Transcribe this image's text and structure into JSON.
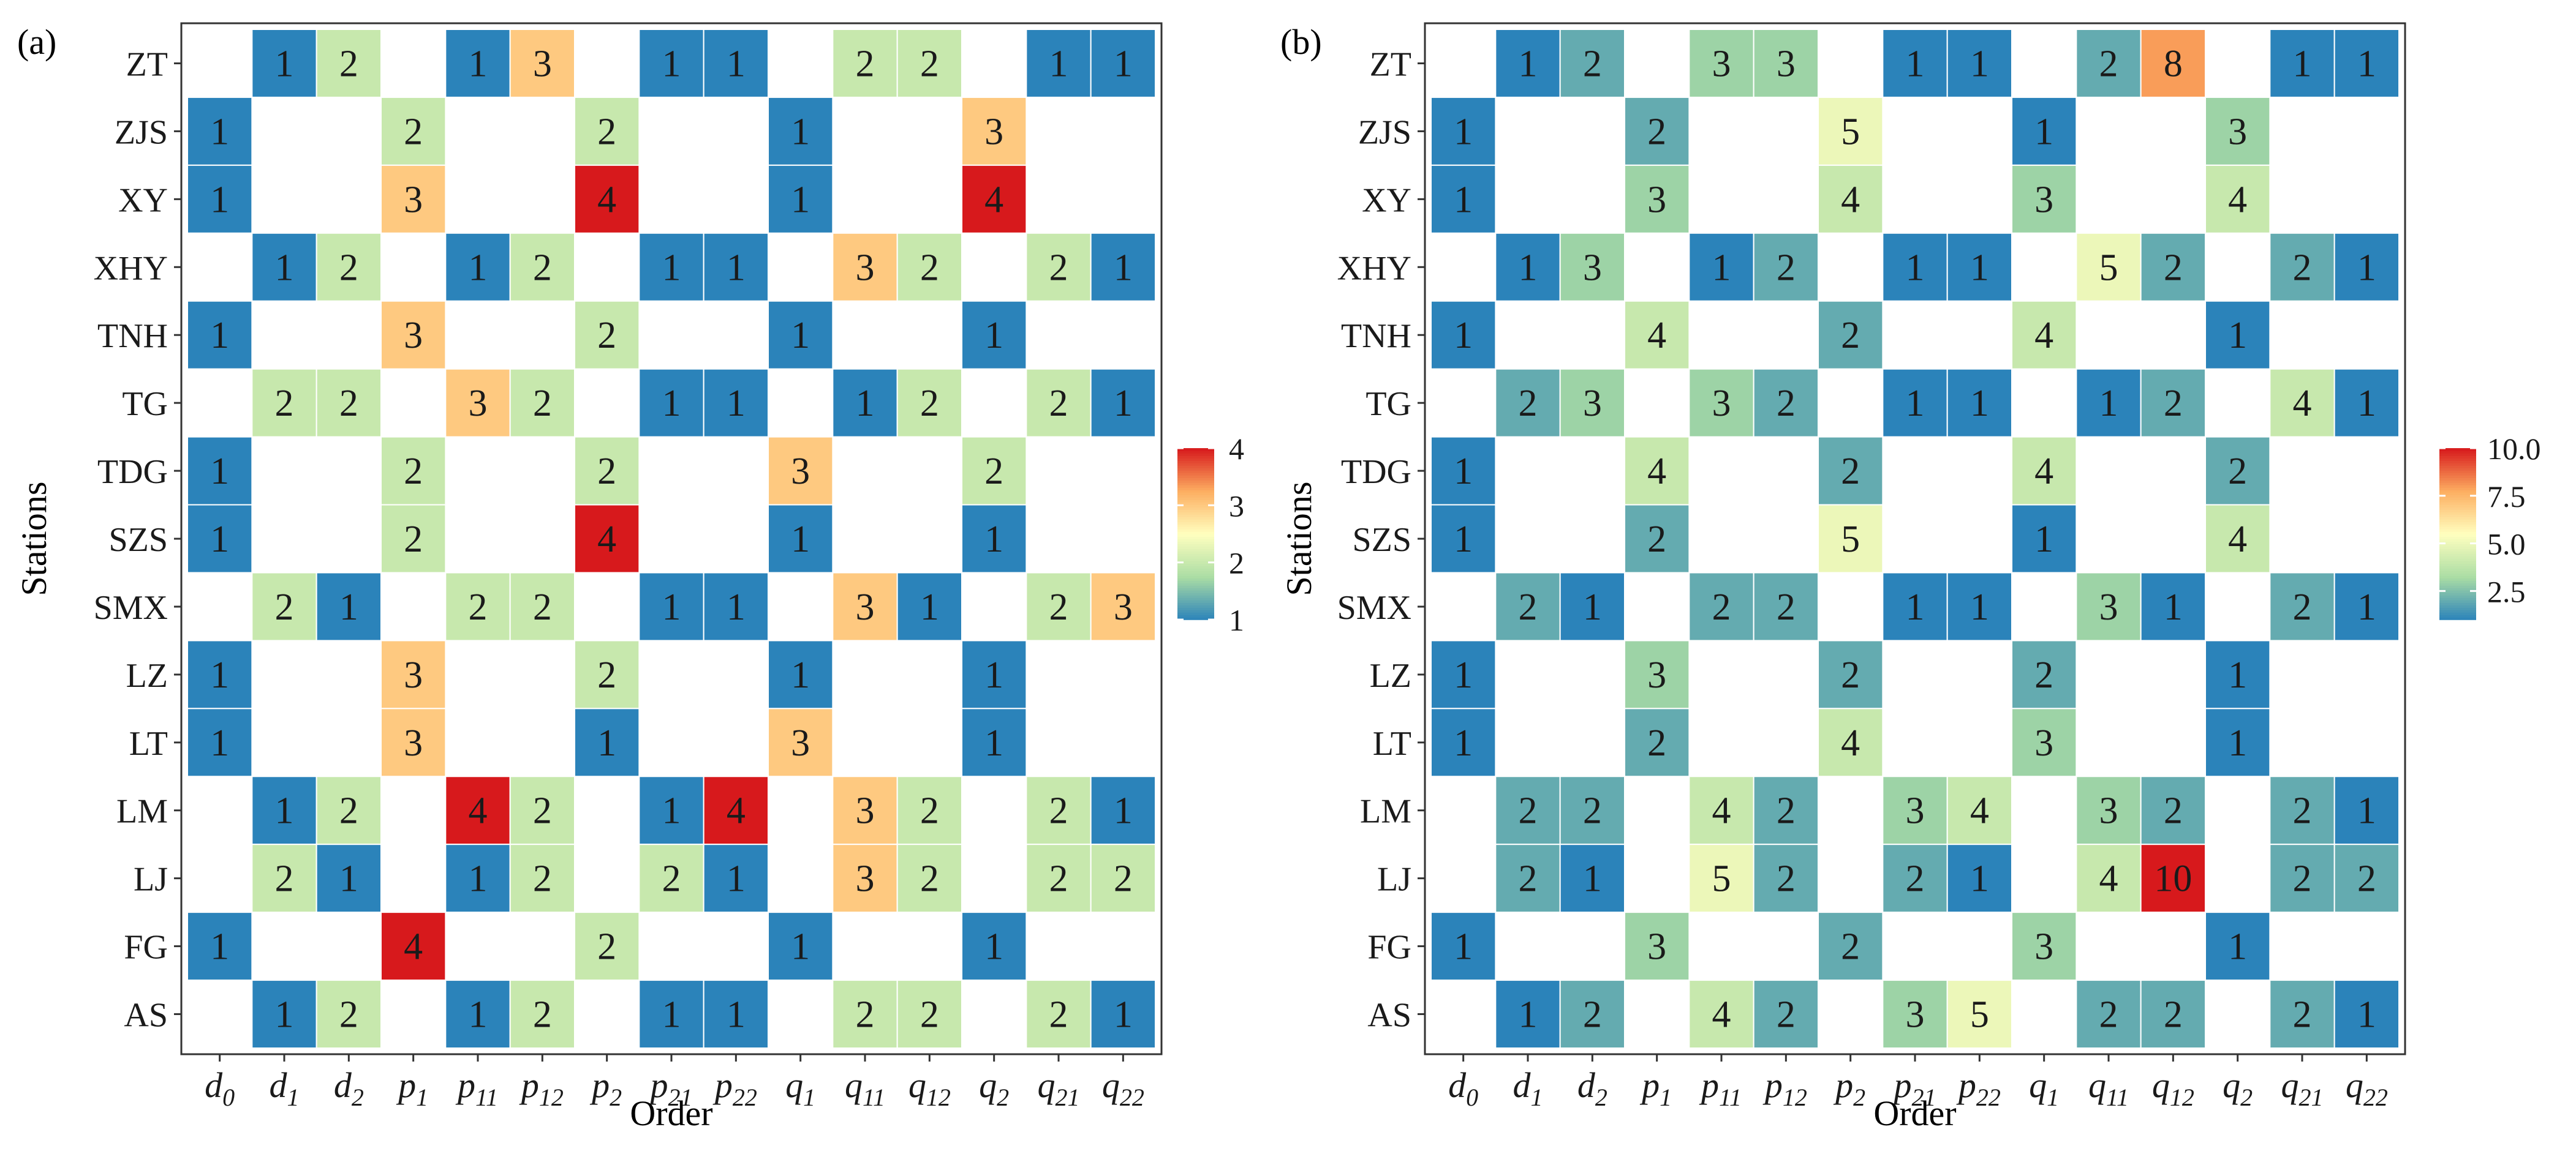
{
  "panels": [
    {
      "label": "(a)",
      "chart_data": {
        "type": "heatmap",
        "xlabel": "Order",
        "ylabel": "Stations",
        "x_categories": [
          {
            "base": "d",
            "sub": "0"
          },
          {
            "base": "d",
            "sub": "1"
          },
          {
            "base": "d",
            "sub": "2"
          },
          {
            "base": "p",
            "sub": "1"
          },
          {
            "base": "p",
            "sub": "11"
          },
          {
            "base": "p",
            "sub": "12"
          },
          {
            "base": "p",
            "sub": "2"
          },
          {
            "base": "p",
            "sub": "21"
          },
          {
            "base": "p",
            "sub": "22"
          },
          {
            "base": "q",
            "sub": "1"
          },
          {
            "base": "q",
            "sub": "11"
          },
          {
            "base": "q",
            "sub": "12"
          },
          {
            "base": "q",
            "sub": "2"
          },
          {
            "base": "q",
            "sub": "21"
          },
          {
            "base": "q",
            "sub": "22"
          }
        ],
        "y_categories": [
          "ZT",
          "ZJS",
          "XY",
          "XHY",
          "TNH",
          "TG",
          "TDG",
          "SZS",
          "SMX",
          "LZ",
          "LT",
          "LM",
          "LJ",
          "FG",
          "AS"
        ],
        "values": [
          [
            null,
            1,
            2,
            null,
            1,
            3,
            null,
            1,
            1,
            null,
            2,
            2,
            null,
            1,
            1
          ],
          [
            1,
            null,
            null,
            2,
            null,
            null,
            2,
            null,
            null,
            1,
            null,
            null,
            3,
            null,
            null
          ],
          [
            1,
            null,
            null,
            3,
            null,
            null,
            4,
            null,
            null,
            1,
            null,
            null,
            4,
            null,
            null
          ],
          [
            null,
            1,
            2,
            null,
            1,
            2,
            null,
            1,
            1,
            null,
            3,
            2,
            null,
            2,
            1
          ],
          [
            1,
            null,
            null,
            3,
            null,
            null,
            2,
            null,
            null,
            1,
            null,
            null,
            1,
            null,
            null
          ],
          [
            null,
            2,
            2,
            null,
            3,
            2,
            null,
            1,
            1,
            null,
            1,
            2,
            null,
            2,
            1
          ],
          [
            1,
            null,
            null,
            2,
            null,
            null,
            2,
            null,
            null,
            3,
            null,
            null,
            2,
            null,
            null
          ],
          [
            1,
            null,
            null,
            2,
            null,
            null,
            4,
            null,
            null,
            1,
            null,
            null,
            1,
            null,
            null
          ],
          [
            null,
            2,
            1,
            null,
            2,
            2,
            null,
            1,
            1,
            null,
            3,
            1,
            null,
            2,
            3
          ],
          [
            1,
            null,
            null,
            3,
            null,
            null,
            2,
            null,
            null,
            1,
            null,
            null,
            1,
            null,
            null
          ],
          [
            1,
            null,
            null,
            3,
            null,
            null,
            1,
            null,
            null,
            3,
            null,
            null,
            1,
            null,
            null
          ],
          [
            null,
            1,
            2,
            null,
            4,
            2,
            null,
            1,
            4,
            null,
            3,
            2,
            null,
            2,
            1
          ],
          [
            null,
            2,
            1,
            null,
            1,
            2,
            null,
            2,
            1,
            null,
            3,
            2,
            null,
            2,
            2
          ],
          [
            1,
            null,
            null,
            4,
            null,
            null,
            2,
            null,
            null,
            1,
            null,
            null,
            1,
            null,
            null
          ],
          [
            null,
            1,
            2,
            null,
            1,
            2,
            null,
            1,
            1,
            null,
            2,
            2,
            null,
            2,
            1
          ]
        ],
        "color_range": [
          1,
          4
        ],
        "colorbar_ticks": [
          "1",
          "2",
          "3",
          "4"
        ],
        "colormap": [
          "#2b83ba",
          "#abdda4",
          "#ffffbf",
          "#fdae61",
          "#d7191c"
        ]
      }
    },
    {
      "label": "(b)",
      "chart_data": {
        "type": "heatmap",
        "xlabel": "Order",
        "ylabel": "Stations",
        "x_categories": [
          {
            "base": "d",
            "sub": "0"
          },
          {
            "base": "d",
            "sub": "1"
          },
          {
            "base": "d",
            "sub": "2"
          },
          {
            "base": "p",
            "sub": "1"
          },
          {
            "base": "p",
            "sub": "11"
          },
          {
            "base": "p",
            "sub": "12"
          },
          {
            "base": "p",
            "sub": "2"
          },
          {
            "base": "p",
            "sub": "21"
          },
          {
            "base": "p",
            "sub": "22"
          },
          {
            "base": "q",
            "sub": "1"
          },
          {
            "base": "q",
            "sub": "11"
          },
          {
            "base": "q",
            "sub": "12"
          },
          {
            "base": "q",
            "sub": "2"
          },
          {
            "base": "q",
            "sub": "21"
          },
          {
            "base": "q",
            "sub": "22"
          }
        ],
        "y_categories": [
          "ZT",
          "ZJS",
          "XY",
          "XHY",
          "TNH",
          "TG",
          "TDG",
          "SZS",
          "SMX",
          "LZ",
          "LT",
          "LM",
          "LJ",
          "FG",
          "AS"
        ],
        "values": [
          [
            null,
            1,
            2,
            null,
            3,
            3,
            null,
            1,
            1,
            null,
            2,
            8,
            null,
            1,
            1
          ],
          [
            1,
            null,
            null,
            2,
            null,
            null,
            5,
            null,
            null,
            1,
            null,
            null,
            3,
            null,
            null
          ],
          [
            1,
            null,
            null,
            3,
            null,
            null,
            4,
            null,
            null,
            3,
            null,
            null,
            4,
            null,
            null
          ],
          [
            null,
            1,
            3,
            null,
            1,
            2,
            null,
            1,
            1,
            null,
            5,
            2,
            null,
            2,
            1
          ],
          [
            1,
            null,
            null,
            4,
            null,
            null,
            2,
            null,
            null,
            4,
            null,
            null,
            1,
            null,
            null
          ],
          [
            null,
            2,
            3,
            null,
            3,
            2,
            null,
            1,
            1,
            null,
            1,
            2,
            null,
            4,
            1
          ],
          [
            1,
            null,
            null,
            4,
            null,
            null,
            2,
            null,
            null,
            4,
            null,
            null,
            2,
            null,
            null
          ],
          [
            1,
            null,
            null,
            2,
            null,
            null,
            5,
            null,
            null,
            1,
            null,
            null,
            4,
            null,
            null
          ],
          [
            null,
            2,
            1,
            null,
            2,
            2,
            null,
            1,
            1,
            null,
            3,
            1,
            null,
            2,
            1
          ],
          [
            1,
            null,
            null,
            3,
            null,
            null,
            2,
            null,
            null,
            2,
            null,
            null,
            1,
            null,
            null
          ],
          [
            1,
            null,
            null,
            2,
            null,
            null,
            4,
            null,
            null,
            3,
            null,
            null,
            1,
            null,
            null
          ],
          [
            null,
            2,
            2,
            null,
            4,
            2,
            null,
            3,
            4,
            null,
            3,
            2,
            null,
            2,
            1
          ],
          [
            null,
            2,
            1,
            null,
            5,
            2,
            null,
            2,
            1,
            null,
            4,
            10,
            null,
            2,
            2
          ],
          [
            1,
            null,
            null,
            3,
            null,
            null,
            2,
            null,
            null,
            3,
            null,
            null,
            1,
            null,
            null
          ],
          [
            null,
            1,
            2,
            null,
            4,
            2,
            null,
            3,
            5,
            null,
            2,
            2,
            null,
            2,
            1
          ]
        ],
        "color_range": [
          1,
          10
        ],
        "colorbar_ticks": [
          "2.5",
          "5.0",
          "7.5",
          "10.0"
        ],
        "colorbar_tick_values": [
          2.5,
          5.0,
          7.5,
          10.0
        ],
        "colormap": [
          "#2b83ba",
          "#abdda4",
          "#ffffbf",
          "#fdae61",
          "#d7191c"
        ]
      }
    }
  ]
}
